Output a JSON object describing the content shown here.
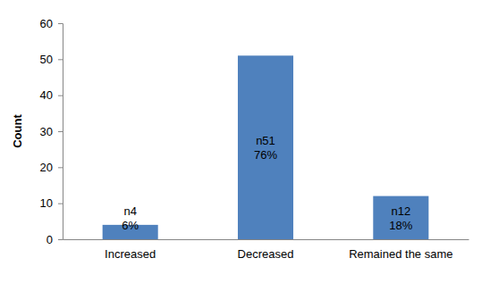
{
  "chart_data": {
    "type": "bar",
    "y_label": "Count",
    "categories": [
      "Increased",
      "Decreased",
      "Remained the same"
    ],
    "values": [
      4,
      51,
      12
    ],
    "value_labels": [
      "n4",
      "n51",
      "n12"
    ],
    "percentage_labels": [
      "6%",
      "76%",
      "18%"
    ],
    "color": "#4f81bd",
    "ylim": [
      0,
      60
    ],
    "yticks": [
      0,
      10,
      20,
      30,
      40,
      50,
      60
    ],
    "grid": false,
    "data_labels": true
  }
}
